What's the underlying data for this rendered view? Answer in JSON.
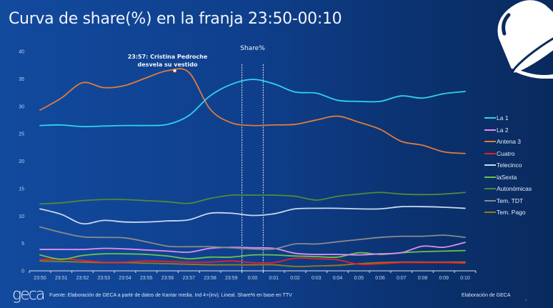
{
  "slide": {
    "title": "Curva de share(%) en la franja 23:50-00:10",
    "logo_text": "geca",
    "source_note": "Fuente: Elaboración de GECA a partir de datos de Kantar media. Ind 4+(inv). Lineal. Share% en base en TTV",
    "credit": "Elaboración de GECA",
    "page_number": "6",
    "corner_icon": "bell-icon"
  },
  "chart_data": {
    "type": "line",
    "title": "Curva de share(%) en la franja 23:50-00:10",
    "xlabel": "",
    "ylabel": "",
    "ylim": [
      0,
      40
    ],
    "yticks": [
      0,
      5,
      10,
      15,
      20,
      25,
      30,
      35,
      40
    ],
    "grid": false,
    "legend_position": "right",
    "x": [
      "23:50",
      "23:51",
      "23:52",
      "23:53",
      "23:54",
      "23:55",
      "23:56",
      "23:57",
      "23:58",
      "23:59",
      "0:00",
      "0:01",
      "0:02",
      "0:03",
      "0:04",
      "0:05",
      "0:06",
      "0:07",
      "0:08",
      "0:09",
      "0:10"
    ],
    "series": [
      {
        "name": "La 1",
        "color": "#2fd3ee",
        "values": [
          26.5,
          26.6,
          26.3,
          26.4,
          26.5,
          26.5,
          26.7,
          28.3,
          31.9,
          34.0,
          34.9,
          34.1,
          32.6,
          32.4,
          31.1,
          30.9,
          30.9,
          31.9,
          31.5,
          32.3,
          32.7
        ]
      },
      {
        "name": "La 2",
        "color": "#e08ef0",
        "values": [
          3.9,
          3.9,
          3.9,
          4.1,
          4.0,
          3.8,
          3.6,
          3.4,
          4.1,
          4.3,
          4.2,
          4.1,
          3.2,
          3.0,
          3.0,
          2.9,
          3.1,
          3.3,
          4.5,
          4.3,
          5.2
        ]
      },
      {
        "name": "Antena 3",
        "color": "#e07b39",
        "values": [
          29.3,
          31.5,
          34.3,
          33.4,
          33.8,
          35.2,
          36.5,
          36.2,
          29.5,
          27.0,
          26.5,
          26.6,
          26.7,
          27.5,
          28.2,
          27.1,
          25.8,
          23.6,
          22.9,
          21.7,
          21.4
        ]
      },
      {
        "name": "Cuatro",
        "color": "#e8202a",
        "values": [
          2.0,
          2.2,
          1.9,
          1.6,
          1.6,
          1.8,
          1.7,
          1.6,
          1.6,
          1.8,
          1.5,
          1.5,
          2.3,
          2.2,
          2.0,
          1.2,
          1.3,
          1.5,
          1.5,
          1.5,
          1.4
        ]
      },
      {
        "name": "Telecinco",
        "color": "#c8d8f0",
        "values": [
          11.3,
          10.3,
          8.6,
          9.2,
          8.9,
          8.9,
          9.1,
          9.3,
          10.5,
          10.5,
          10.1,
          10.4,
          11.3,
          11.4,
          11.4,
          11.3,
          11.3,
          11.7,
          11.7,
          11.6,
          11.4
        ]
      },
      {
        "name": "laSexta",
        "color": "#6cc24a",
        "values": [
          2.9,
          2.1,
          2.8,
          3.1,
          3.1,
          3.0,
          2.7,
          2.2,
          2.5,
          2.5,
          2.9,
          2.9,
          2.7,
          2.6,
          2.5,
          3.3,
          3.0,
          3.3,
          3.5,
          3.6,
          3.7
        ]
      },
      {
        "name": "Autonómicas",
        "color": "#4e8a3a",
        "values": [
          12.2,
          12.4,
          12.8,
          13.0,
          13.0,
          12.8,
          12.6,
          12.3,
          13.2,
          13.8,
          13.8,
          13.8,
          13.6,
          12.9,
          13.6,
          14.0,
          14.3,
          14.0,
          13.9,
          14.0,
          14.3
        ]
      },
      {
        "name": "Tem. TDT",
        "color": "#8a8a8a",
        "values": [
          8.0,
          7.0,
          6.2,
          6.1,
          6.0,
          5.3,
          4.5,
          4.4,
          4.4,
          4.2,
          4.0,
          4.0,
          4.9,
          4.9,
          5.3,
          5.7,
          6.1,
          6.3,
          6.3,
          6.5,
          6.1
        ]
      },
      {
        "name": "Tem. Pago",
        "color": "#9a7a1e",
        "values": [
          1.8,
          1.7,
          1.6,
          1.5,
          1.5,
          1.4,
          1.3,
          1.2,
          1.1,
          1.1,
          1.1,
          1.1,
          0.8,
          0.9,
          1.0,
          1.3,
          1.5,
          1.6,
          1.6,
          1.6,
          1.6
        ]
      }
    ],
    "annotations": [
      {
        "text_line1": "23:57: Cristina Pedroche",
        "text_line2": "desvela su vestido",
        "series": "Antena 3",
        "x": "23:56",
        "value": 36.5
      }
    ],
    "highlight_band": {
      "label": "Share%",
      "category": "0:00"
    }
  }
}
